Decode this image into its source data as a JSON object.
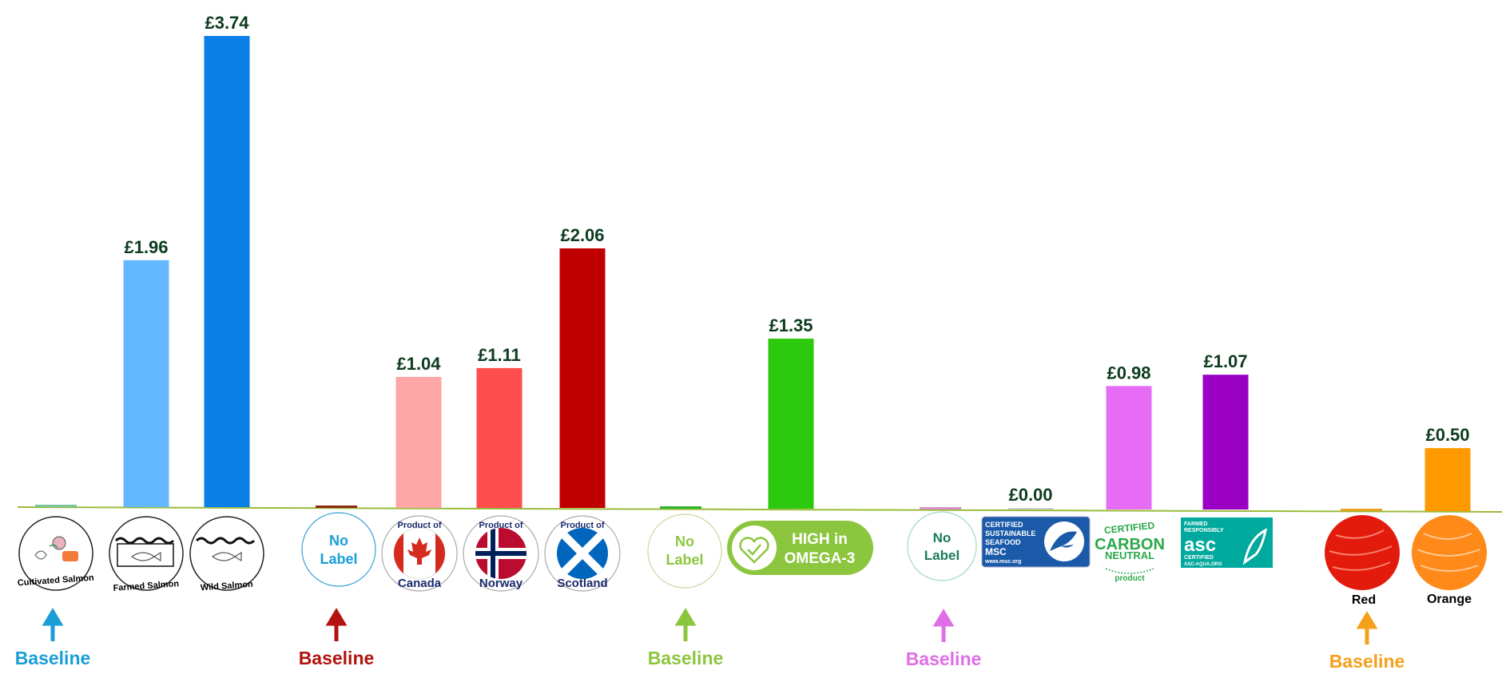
{
  "chart_data": {
    "type": "bar",
    "title": "",
    "ylabel": "",
    "xlabel": "",
    "ylim": [
      0,
      3.74
    ],
    "grid": false,
    "groups": [
      {
        "baseline_label": "Baseline",
        "color": "#1a9ed8",
        "bars": [
          {
            "category": "Cultivated Salmon",
            "value": 0.0,
            "color": "#7cc4a0",
            "is_baseline": true
          },
          {
            "category": "Farmed Salmon",
            "value": 1.96,
            "label": "£1.96",
            "color": "#63b7ff"
          },
          {
            "category": "Wild Salmon",
            "value": 3.74,
            "label": "£3.74",
            "color": "#0a7fe8"
          }
        ]
      },
      {
        "baseline_label": "Baseline",
        "color": "#b3120f",
        "bars": [
          {
            "category": "No Label",
            "value": 0.0,
            "color": "#8b2a10",
            "is_baseline": true
          },
          {
            "category": "Canada",
            "value": 1.04,
            "label": "£1.04",
            "color": "#ffa6a6"
          },
          {
            "category": "Norway",
            "value": 1.11,
            "label": "£1.11",
            "color": "#ff4d4d"
          },
          {
            "category": "Scotland",
            "value": 2.06,
            "label": "£2.06",
            "color": "#c00000"
          }
        ]
      },
      {
        "baseline_label": "Baseline",
        "color": "#8cc63f",
        "bars": [
          {
            "category": "No Label",
            "value": 0.0,
            "color": "#2bb52b",
            "is_baseline": true
          },
          {
            "category": "HIGH in OMEGA-3",
            "value": 1.35,
            "label": "£1.35",
            "color": "#2cc90e"
          }
        ]
      },
      {
        "baseline_label": "Baseline",
        "color": "#e06fe6",
        "bars": [
          {
            "category": "No Label",
            "value": 0.0,
            "color": "#d98fc7",
            "is_baseline": true
          },
          {
            "category": "MSC",
            "value": 0.0,
            "label": "£0.00",
            "color": "#d0d0d0"
          },
          {
            "category": "Carbon Neutral",
            "value": 0.98,
            "label": "£0.98",
            "color": "#e66cf5"
          },
          {
            "category": "ASC",
            "value": 1.07,
            "label": "£1.07",
            "color": "#9900c4"
          }
        ]
      },
      {
        "baseline_label": "Baseline",
        "color": "#f5a01a",
        "bars": [
          {
            "category": "Red",
            "value": 0.0,
            "color": "#e8a020",
            "is_baseline": true
          },
          {
            "category": "Orange",
            "value": 0.5,
            "label": "£0.50",
            "color": "#ff9900"
          }
        ]
      }
    ]
  },
  "logos": {
    "cultivated": "Cultivated Salmon",
    "farmed": "Farmed Salmon",
    "wild": "Wild Salmon",
    "no_label_1": [
      "No",
      "Label"
    ],
    "product_of": "Product of",
    "canada": "Canada",
    "norway": "Norway",
    "scotland": "Scotland",
    "no_label_2": [
      "No",
      "Label"
    ],
    "omega": [
      "HIGH in",
      "OMEGA-3"
    ],
    "no_label_3": [
      "No",
      "Label"
    ],
    "msc": [
      "CERTIFIED",
      "SUSTAINABLE",
      "SEAFOOD",
      "MSC",
      "www.msc.org"
    ],
    "carbon": [
      "CERTIFIED",
      "CARBON",
      "NEUTRAL",
      "product"
    ],
    "asc": [
      "FARMED",
      "RESPONSIBLY",
      "asc",
      "CERTIFIED",
      "ASC-AQUA.ORG"
    ],
    "red": "Red",
    "orange": "Orange"
  },
  "icons": [
    "salmon-fillet-icon",
    "fish-icon",
    "maple-leaf-icon",
    "nordic-cross-icon",
    "saltire-icon",
    "heart-check-icon",
    "msc-fish-icon",
    "asc-fish-icon",
    "salmon-texture-icon",
    "up-arrow-icon"
  ]
}
